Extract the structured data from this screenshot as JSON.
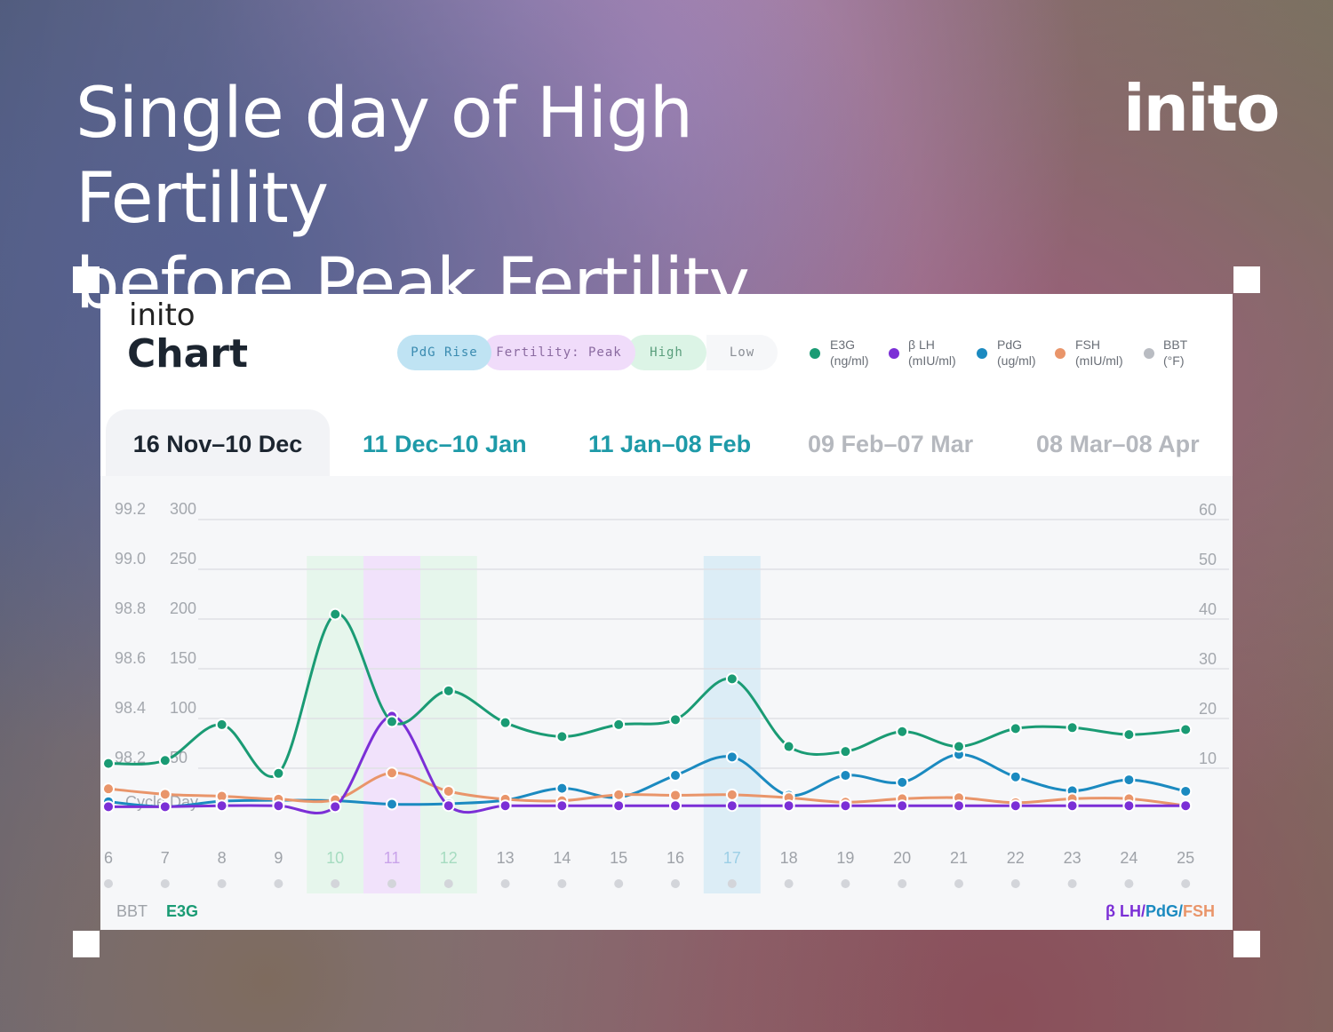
{
  "headline": {
    "line1": "Single day of High Fertility",
    "line2": "before Peak Fertility"
  },
  "brand": "inito",
  "card": {
    "logo": "inito",
    "title": "Chart",
    "phase_pills": [
      "PdG Rise",
      "Fertility: Peak",
      "High",
      "Low"
    ],
    "legend": [
      {
        "name": "E3G",
        "unit": "(ng/ml)",
        "color": "#1a9b74"
      },
      {
        "name": "β LH",
        "unit": "(mIU/ml)",
        "color": "#7b2fd6"
      },
      {
        "name": "PdG",
        "unit": "(ug/ml)",
        "color": "#1b8ac0"
      },
      {
        "name": "FSH",
        "unit": "(mIU/ml)",
        "color": "#e9956a"
      },
      {
        "name": "BBT",
        "unit": "(°F)",
        "color": "#b9bcc2"
      }
    ],
    "tabs": [
      "16 Nov–10 Dec",
      "11 Dec–10 Jan",
      "11 Jan–08 Feb",
      "09 Feb–07 Mar",
      "08 Mar–08 Apr"
    ],
    "footer_left": {
      "bbt": "BBT",
      "e3g": "E3G"
    },
    "footer_right": {
      "lh": "β LH",
      "sep1": "/",
      "pdg": "PdG",
      "sep2": "/",
      "fsh": "FSH"
    },
    "cycle_day_label": "Cycle Day"
  },
  "chart_data": {
    "type": "line",
    "x": [
      6,
      7,
      8,
      9,
      10,
      11,
      12,
      13,
      14,
      15,
      16,
      17,
      18,
      19,
      20,
      21,
      22,
      23,
      24,
      25
    ],
    "left_axis_bbt_ticks": [
      "99.2",
      "99.0",
      "98.8",
      "98.6",
      "98.4",
      "98.2"
    ],
    "left_axis_e3g_ticks": [
      "300",
      "250",
      "200",
      "150",
      "100",
      "50"
    ],
    "right_axis_ticks": [
      "60",
      "50",
      "40",
      "30",
      "20",
      "10"
    ],
    "e3g_range": [
      0,
      300
    ],
    "right_range": [
      0,
      60
    ],
    "phases": [
      {
        "label": "High",
        "days": [
          10,
          12
        ],
        "color": "#e6f6ec"
      },
      {
        "label": "Fertility: Peak",
        "days": [
          11
        ],
        "color": "#f1e2fb"
      },
      {
        "label": "PdG Rise",
        "days": [
          17
        ],
        "color": "#dcedf6"
      }
    ],
    "series": [
      {
        "name": "E3G",
        "axis": "left",
        "color": "#1a9b74",
        "values": [
          45,
          48,
          84,
          35,
          195,
          87,
          118,
          86,
          72,
          84,
          89,
          130,
          62,
          57,
          77,
          62,
          80,
          81,
          74,
          79
        ]
      },
      {
        "name": "β LH",
        "axis": "right",
        "color": "#7b2fd6",
        "values": [
          0.3,
          0.3,
          0.5,
          0.5,
          0.3,
          18.5,
          0.5,
          0.5,
          0.5,
          0.5,
          0.5,
          0.5,
          0.5,
          0.5,
          0.5,
          0.5,
          0.5,
          0.5,
          0.5,
          0.5
        ]
      },
      {
        "name": "PdG",
        "axis": "right",
        "color": "#1b8ac0",
        "values": [
          1.3,
          0.3,
          1.4,
          1.6,
          1.5,
          0.8,
          0.9,
          1.6,
          4.0,
          2.2,
          6.6,
          10.3,
          2.6,
          6.6,
          5.2,
          10.8,
          6.3,
          3.5,
          5.7,
          3.4
        ]
      },
      {
        "name": "FSH",
        "axis": "right",
        "color": "#e9956a",
        "values": [
          3.9,
          2.8,
          2.4,
          1.8,
          1.7,
          7.1,
          3.4,
          1.8,
          1.5,
          2.7,
          2.6,
          2.7,
          2.1,
          1.2,
          1.9,
          2.1,
          1.1,
          1.9,
          1.9,
          0.5
        ]
      }
    ]
  }
}
